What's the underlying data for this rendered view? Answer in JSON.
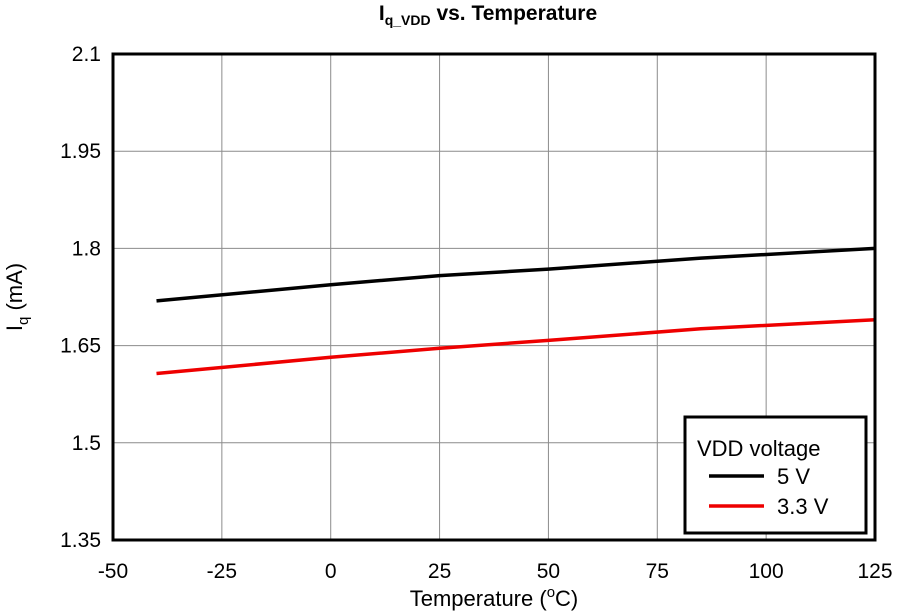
{
  "chart_data": {
    "type": "line",
    "title_main": "I",
    "title_sub": "q_VDD",
    "title_rest": " vs. Temperature",
    "xlabel_main": "Temperature (",
    "xlabel_sup": "o",
    "xlabel_end": "C)",
    "ylabel_main": "I",
    "ylabel_sub": "q",
    "ylabel_end": " (mA)",
    "xlim": [
      -50,
      125
    ],
    "ylim": [
      1.35,
      2.1
    ],
    "xticks": [
      -50,
      -25,
      0,
      25,
      50,
      75,
      100,
      125
    ],
    "xtick_labels": [
      "-50",
      "-25",
      "0",
      "25",
      "50",
      "75",
      "100",
      "125"
    ],
    "yticks": [
      1.35,
      1.5,
      1.65,
      1.8,
      1.95,
      2.1
    ],
    "ytick_labels": [
      "1.35",
      "1.5",
      "1.65",
      "1.8",
      "1.95",
      "2.1"
    ],
    "grid": true,
    "legend_title": "VDD voltage",
    "legend_position": "bottom-right",
    "series": [
      {
        "name": "5 V",
        "color": "#000000",
        "x": [
          -40,
          0,
          25,
          50,
          85,
          125
        ],
        "y": [
          1.719,
          1.744,
          1.758,
          1.768,
          1.785,
          1.8
        ]
      },
      {
        "name": "3.3 V",
        "color": "#ee0000",
        "x": [
          -40,
          0,
          25,
          50,
          85,
          125
        ],
        "y": [
          1.607,
          1.632,
          1.646,
          1.658,
          1.676,
          1.69
        ]
      }
    ]
  }
}
